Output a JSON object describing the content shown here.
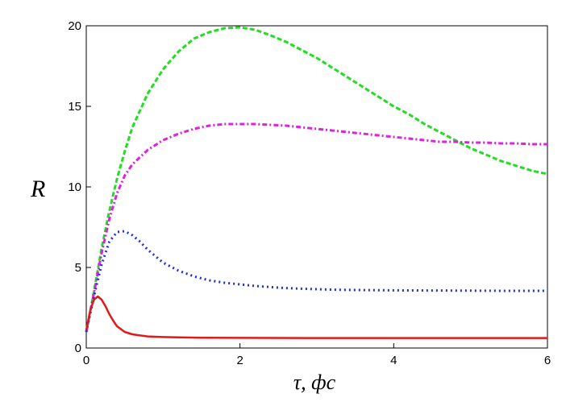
{
  "chart_data": {
    "type": "line",
    "title": "",
    "xlabel": "τ, фс",
    "ylabel": "R",
    "xlim": [
      0,
      6
    ],
    "ylim": [
      0,
      20
    ],
    "xticks": [
      0,
      2,
      4,
      6
    ],
    "yticks": [
      0,
      5,
      10,
      15,
      20
    ],
    "xtick_labels": [
      "0",
      "2",
      "4",
      "6"
    ],
    "ytick_labels": [
      "0",
      "5",
      "10",
      "15",
      "20"
    ],
    "grid": false,
    "legend": "none",
    "series": [
      {
        "color": "#22dd22",
        "style": "dashed",
        "x": [
          0,
          0.1,
          0.2,
          0.3,
          0.4,
          0.5,
          0.6,
          0.8,
          1.0,
          1.2,
          1.4,
          1.6,
          1.8,
          2.0,
          2.2,
          2.4,
          2.6,
          2.8,
          3.0,
          3.2,
          3.4,
          3.6,
          3.8,
          4.0,
          4.2,
          4.4,
          4.6,
          4.8,
          5.0,
          5.2,
          5.4,
          5.6,
          5.8,
          6.0
        ],
        "y": [
          1.0,
          3.5,
          6.2,
          8.5,
          10.5,
          12.2,
          13.7,
          15.8,
          17.3,
          18.4,
          19.2,
          19.6,
          19.85,
          19.9,
          19.75,
          19.4,
          19.0,
          18.5,
          18.0,
          17.4,
          16.8,
          16.2,
          15.6,
          15.0,
          14.5,
          13.9,
          13.4,
          12.9,
          12.4,
          12.0,
          11.6,
          11.3,
          11.0,
          10.8
        ]
      },
      {
        "color": "#dd22dd",
        "style": "dash-dot",
        "x": [
          0,
          0.1,
          0.2,
          0.3,
          0.4,
          0.5,
          0.6,
          0.8,
          1.0,
          1.2,
          1.4,
          1.6,
          1.8,
          2.0,
          2.2,
          2.4,
          2.6,
          2.8,
          3.0,
          3.2,
          3.4,
          3.6,
          3.8,
          4.0,
          4.2,
          4.4,
          4.6,
          4.8,
          5.0,
          5.2,
          5.4,
          5.6,
          5.8,
          6.0
        ],
        "y": [
          1.0,
          3.4,
          5.9,
          8.0,
          9.6,
          10.7,
          11.4,
          12.3,
          12.9,
          13.3,
          13.6,
          13.8,
          13.9,
          13.9,
          13.9,
          13.85,
          13.8,
          13.7,
          13.6,
          13.5,
          13.4,
          13.3,
          13.2,
          13.1,
          13.0,
          12.9,
          12.8,
          12.8,
          12.75,
          12.75,
          12.7,
          12.7,
          12.65,
          12.65
        ]
      },
      {
        "color": "#1f2fdd",
        "style": "dotted",
        "x": [
          0,
          0.1,
          0.2,
          0.3,
          0.4,
          0.5,
          0.6,
          0.7,
          0.8,
          1.0,
          1.2,
          1.4,
          1.6,
          1.8,
          2.0,
          2.2,
          2.4,
          2.6,
          2.8,
          3.0,
          3.2,
          3.5,
          4.0,
          4.5,
          5.0,
          5.5,
          6.0
        ],
        "y": [
          1.0,
          3.2,
          5.2,
          6.6,
          7.2,
          7.25,
          7.0,
          6.6,
          6.1,
          5.3,
          4.8,
          4.45,
          4.2,
          4.05,
          3.95,
          3.85,
          3.78,
          3.72,
          3.68,
          3.65,
          3.62,
          3.6,
          3.58,
          3.57,
          3.56,
          3.55,
          3.55
        ]
      },
      {
        "color": "#e01a1a",
        "style": "solid",
        "x": [
          0,
          0.05,
          0.1,
          0.15,
          0.2,
          0.25,
          0.3,
          0.35,
          0.4,
          0.5,
          0.6,
          0.7,
          0.8,
          1.0,
          1.2,
          1.5,
          2.0,
          3.0,
          4.0,
          5.0,
          6.0
        ],
        "y": [
          1.1,
          2.3,
          3.0,
          3.2,
          3.0,
          2.6,
          2.1,
          1.7,
          1.35,
          1.0,
          0.85,
          0.78,
          0.72,
          0.68,
          0.66,
          0.64,
          0.63,
          0.62,
          0.62,
          0.62,
          0.62
        ]
      }
    ]
  }
}
